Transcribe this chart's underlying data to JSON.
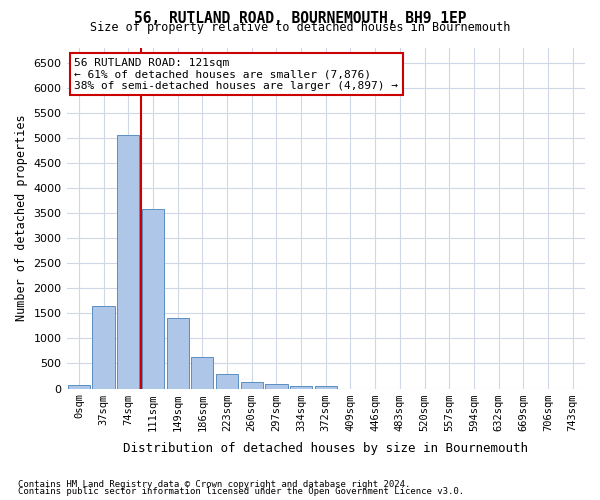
{
  "title": "56, RUTLAND ROAD, BOURNEMOUTH, BH9 1EP",
  "subtitle": "Size of property relative to detached houses in Bournemouth",
  "xlabel": "Distribution of detached houses by size in Bournemouth",
  "ylabel": "Number of detached properties",
  "footer_line1": "Contains HM Land Registry data © Crown copyright and database right 2024.",
  "footer_line2": "Contains public sector information licensed under the Open Government Licence v3.0.",
  "bar_values": [
    75,
    1650,
    5050,
    3580,
    1400,
    620,
    290,
    130,
    90,
    60,
    60,
    0,
    0,
    0,
    0,
    0,
    0,
    0,
    0,
    0
  ],
  "x_labels": [
    "0sqm",
    "37sqm",
    "74sqm",
    "111sqm",
    "149sqm",
    "186sqm",
    "223sqm",
    "260sqm",
    "297sqm",
    "334sqm",
    "372sqm",
    "409sqm",
    "446sqm",
    "483sqm",
    "520sqm",
    "557sqm",
    "594sqm",
    "632sqm",
    "669sqm",
    "706sqm"
  ],
  "x_labels_extra": "743sqm",
  "bar_color": "#aec6e8",
  "bar_edge_color": "#5a8fc2",
  "grid_color": "#d0d8e8",
  "vline_color": "#cc0000",
  "vline_position": 2.5,
  "annotation_text": "56 RUTLAND ROAD: 121sqm\n← 61% of detached houses are smaller (7,876)\n38% of semi-detached houses are larger (4,897) →",
  "annotation_box_color": "#cc0000",
  "ylim": [
    0,
    6800
  ],
  "yticks": [
    0,
    500,
    1000,
    1500,
    2000,
    2500,
    3000,
    3500,
    4000,
    4500,
    5000,
    5500,
    6000,
    6500
  ],
  "figsize": [
    6.0,
    5.0
  ],
  "dpi": 100
}
